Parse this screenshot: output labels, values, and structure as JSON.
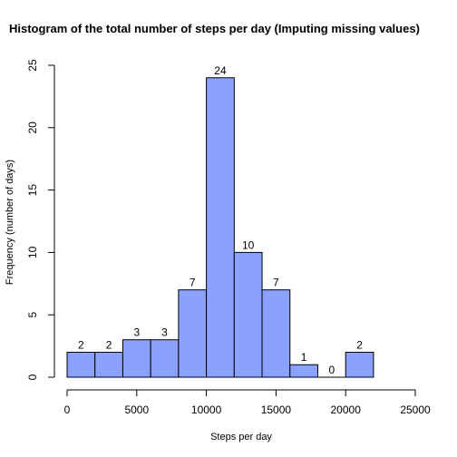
{
  "chart_data": {
    "type": "bar",
    "title": "Histogram of the total number of steps per day (Imputing missing values)",
    "xlabel": "Steps per day",
    "ylabel": "Frequency (number of days)",
    "bins": [
      {
        "start": 0,
        "end": 2000,
        "count": 2
      },
      {
        "start": 2000,
        "end": 4000,
        "count": 2
      },
      {
        "start": 4000,
        "end": 6000,
        "count": 3
      },
      {
        "start": 6000,
        "end": 8000,
        "count": 3
      },
      {
        "start": 8000,
        "end": 10000,
        "count": 7
      },
      {
        "start": 10000,
        "end": 12000,
        "count": 24
      },
      {
        "start": 12000,
        "end": 14000,
        "count": 10
      },
      {
        "start": 14000,
        "end": 16000,
        "count": 7
      },
      {
        "start": 16000,
        "end": 18000,
        "count": 1
      },
      {
        "start": 18000,
        "end": 20000,
        "count": 0
      },
      {
        "start": 20000,
        "end": 22000,
        "count": 2
      }
    ],
    "xlim": [
      0,
      25000
    ],
    "ylim": [
      0,
      25
    ],
    "xticks": [
      0,
      5000,
      10000,
      15000,
      20000,
      25000
    ],
    "yticks": [
      0,
      5,
      10,
      15,
      20,
      25
    ],
    "grid": false,
    "bar_color": "#8aa2fb",
    "bar_edge_color": "#000000"
  }
}
